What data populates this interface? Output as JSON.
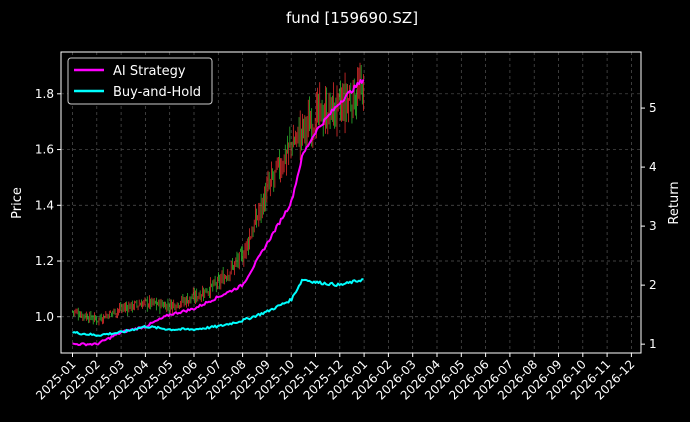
{
  "chart_data": {
    "type": "line",
    "title": "fund [159690.SZ]",
    "ylabel_left": "Price",
    "ylabel_right": "Return",
    "x_tick_labels": [
      "2025-01",
      "2025-02",
      "2025-03",
      "2025-04",
      "2025-05",
      "2025-06",
      "2025-07",
      "2025-08",
      "2025-09",
      "2025-10",
      "2025-11",
      "2025-12",
      "2026-01",
      "2026-02",
      "2026-03",
      "2026-04",
      "2026-05",
      "2026-06",
      "2026-07",
      "2026-08",
      "2026-09",
      "2026-10",
      "2026-11",
      "2026-12"
    ],
    "x_range": [
      "2025-01",
      "2026-12"
    ],
    "ylim_left": [
      0.87,
      1.95
    ],
    "yticks_left": [
      "1.0",
      "1.2",
      "1.4",
      "1.6",
      "1.8"
    ],
    "ylim_right": [
      0.85,
      5.95
    ],
    "yticks_right": [
      "1",
      "2",
      "3",
      "4",
      "5"
    ],
    "grid": true,
    "legend_placement": "top-left",
    "series": [
      {
        "name": "AI Strategy",
        "axis": "right",
        "color": "#ff00ff",
        "x": [
          "2025-01",
          "2025-02",
          "2025-03",
          "2025-04",
          "2025-05",
          "2025-06",
          "2025-07",
          "2025-08",
          "2025-09",
          "2025-10",
          "2025-10-15",
          "2025-11",
          "2025-12",
          "2026-01"
        ],
        "values": [
          1.0,
          1.0,
          1.2,
          1.3,
          1.5,
          1.6,
          1.8,
          2.0,
          2.7,
          3.4,
          4.2,
          4.6,
          5.1,
          5.5
        ]
      },
      {
        "name": "Buy-and-Hold",
        "axis": "right",
        "color": "#00ffff",
        "x": [
          "2025-01",
          "2025-02",
          "2025-03",
          "2025-04",
          "2025-05",
          "2025-06",
          "2025-07",
          "2025-08",
          "2025-09",
          "2025-10",
          "2025-10-15",
          "2025-11",
          "2025-12",
          "2026-01"
        ],
        "values": [
          1.2,
          1.15,
          1.2,
          1.3,
          1.25,
          1.25,
          1.3,
          1.4,
          1.55,
          1.75,
          2.1,
          2.05,
          2.0,
          2.1
        ]
      }
    ],
    "candles_price": {
      "x": [
        "2025-01",
        "2025-02",
        "2025-03",
        "2025-04",
        "2025-05",
        "2025-06",
        "2025-07",
        "2025-08",
        "2025-09",
        "2025-10",
        "2025-11",
        "2025-12",
        "2026-01"
      ],
      "values": [
        1.02,
        0.99,
        1.03,
        1.05,
        1.04,
        1.07,
        1.12,
        1.22,
        1.45,
        1.62,
        1.72,
        1.75,
        1.82
      ],
      "up_color": "#ff3333",
      "down_color": "#33cc33"
    }
  }
}
